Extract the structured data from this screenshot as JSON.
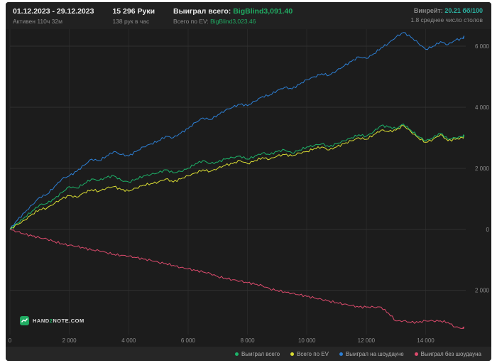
{
  "header": {
    "date_range": "01.12.2023 - 29.12.2023",
    "active_time": "Активен 110ч 32м",
    "hands": "15 296 Руки",
    "hands_per_hour": "138 рук в час",
    "won_total_label": "Выиграл всего:",
    "won_total_value": "BigBlind3,091.40",
    "ev_total_label": "Всего по EV:",
    "ev_total_value": "BigBlind3,023.46",
    "winrate_label": "Винрейт:",
    "winrate_value": "20.21 бб/100",
    "avg_tables": "1.8 среднее число столов"
  },
  "logo": {
    "part1": "HAND",
    "part2": "2",
    "part3": "NOTE.COM"
  },
  "colors": {
    "background": "#1d1d1d",
    "panel": "#262626",
    "value_green": "#21aa62",
    "winrate_teal": "#2bb3a3",
    "series_total": "#1db46a",
    "series_ev": "#d9dc33",
    "series_showdown": "#2d7fd4",
    "series_nonshowdown": "#dd4b6d",
    "grid": "#303030",
    "axis_text": "#8d8d8d"
  },
  "chart_data": {
    "type": "line",
    "title": "",
    "xlabel": "",
    "ylabel": "",
    "grid": true,
    "legend_position": "bottom-right",
    "xlim": [
      0,
      15350
    ],
    "ylim": [
      -3450,
      6560
    ],
    "x_ticks": [
      0,
      2000,
      4000,
      6000,
      8000,
      10000,
      12000,
      14000
    ],
    "x_tick_labels": [
      "0",
      "2 000",
      "4 000",
      "6 000",
      "8 000",
      "10 000",
      "12 000",
      "14 000"
    ],
    "y_ticks": [
      6000,
      4000,
      2000,
      0,
      -2000
    ],
    "y_tick_labels": [
      "6 000",
      "4 000",
      "2 000",
      "0",
      "2 000"
    ],
    "x": [
      0,
      250,
      500,
      750,
      1000,
      1250,
      1500,
      1750,
      2000,
      2250,
      2500,
      2750,
      3000,
      3250,
      3500,
      3750,
      4000,
      4250,
      4500,
      4750,
      5000,
      5250,
      5500,
      5750,
      6000,
      6250,
      6500,
      6750,
      7000,
      7250,
      7500,
      7750,
      8000,
      8250,
      8500,
      8750,
      9000,
      9250,
      9500,
      9750,
      10000,
      10250,
      10500,
      10750,
      11000,
      11250,
      11500,
      11750,
      12000,
      12250,
      12500,
      12750,
      13000,
      13250,
      13500,
      13750,
      14000,
      14250,
      14500,
      14750,
      15000,
      15250,
      15296
    ],
    "series": [
      {
        "name": "Выиграл всего",
        "color": "#1db46a",
        "final_value": 3091.4,
        "values": [
          0,
          200,
          400,
          600,
          800,
          850,
          1000,
          1200,
          1400,
          1350,
          1500,
          1650,
          1600,
          1700,
          1750,
          1600,
          1550,
          1650,
          1750,
          1800,
          1850,
          1950,
          1850,
          1900,
          2000,
          2150,
          2250,
          2150,
          2200,
          2300,
          2350,
          2400,
          2300,
          2400,
          2500,
          2450,
          2550,
          2600,
          2500,
          2600,
          2700,
          2750,
          2800,
          2700,
          2800,
          2900,
          3000,
          3100,
          3050,
          3200,
          3400,
          3350,
          3300,
          3450,
          3250,
          3050,
          2900,
          3000,
          3150,
          2950,
          3000,
          3050,
          3091
        ]
      },
      {
        "name": "Всего по EV",
        "color": "#d9dc33",
        "final_value": 3023.46,
        "values": [
          0,
          150,
          300,
          500,
          650,
          700,
          850,
          1000,
          1100,
          1050,
          1200,
          1300,
          1250,
          1350,
          1400,
          1300,
          1250,
          1350,
          1450,
          1500,
          1550,
          1650,
          1550,
          1650,
          1750,
          1850,
          1950,
          1900,
          2000,
          2100,
          2150,
          2250,
          2150,
          2250,
          2350,
          2300,
          2400,
          2450,
          2400,
          2500,
          2550,
          2650,
          2700,
          2600,
          2700,
          2800,
          2900,
          3000,
          2950,
          3100,
          3250,
          3200,
          3250,
          3400,
          3200,
          3000,
          2850,
          2950,
          3100,
          2900,
          2950,
          3000,
          3023
        ]
      },
      {
        "name": "Выиграл на шоудауне",
        "color": "#2d7fd4",
        "final_value": 6300,
        "values": [
          0,
          300,
          550,
          800,
          1050,
          1150,
          1400,
          1650,
          1750,
          1900,
          2100,
          2300,
          2250,
          2400,
          2550,
          2450,
          2400,
          2550,
          2700,
          2800,
          2900,
          3050,
          3000,
          3150,
          3300,
          3500,
          3650,
          3600,
          3750,
          3900,
          4000,
          4100,
          4050,
          4200,
          4350,
          4400,
          4550,
          4650,
          4600,
          4750,
          4900,
          5000,
          5100,
          5050,
          5200,
          5350,
          5500,
          5650,
          5600,
          5750,
          5950,
          6100,
          6300,
          6450,
          6300,
          6100,
          5900,
          6000,
          6150,
          6050,
          6200,
          6250,
          6300
        ]
      },
      {
        "name": "Выиграл без шоудауна",
        "color": "#dd4b6d",
        "final_value": -3209,
        "values": [
          0,
          -80,
          -160,
          -220,
          -280,
          -320,
          -400,
          -470,
          -520,
          -560,
          -620,
          -680,
          -700,
          -760,
          -820,
          -850,
          -880,
          -930,
          -980,
          -1020,
          -1080,
          -1120,
          -1180,
          -1250,
          -1300,
          -1350,
          -1400,
          -1450,
          -1550,
          -1600,
          -1650,
          -1700,
          -1750,
          -1800,
          -1850,
          -1950,
          -2000,
          -2050,
          -2100,
          -2150,
          -2200,
          -2250,
          -2300,
          -2350,
          -2400,
          -2450,
          -2500,
          -2550,
          -2550,
          -2550,
          -2550,
          -2750,
          -3000,
          -3000,
          -3050,
          -3050,
          -3000,
          -3000,
          -3000,
          -3050,
          -3200,
          -3250,
          -3209
        ]
      }
    ]
  }
}
